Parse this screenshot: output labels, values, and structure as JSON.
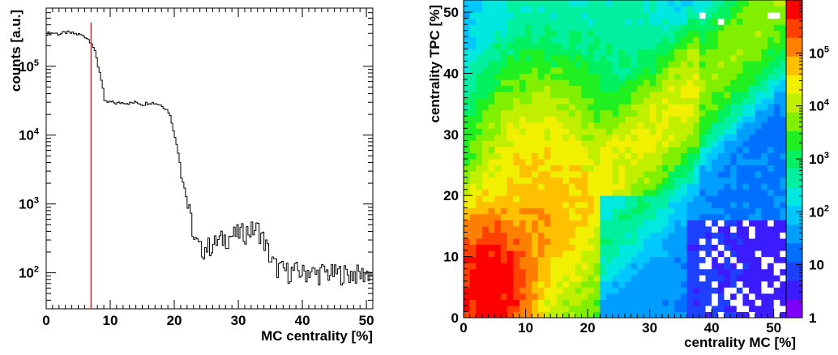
{
  "chart_data": [
    {
      "type": "line",
      "panel": "left",
      "xlabel": "MC centrality [%]",
      "ylabel": "counts [a.u.]",
      "xlim": [
        0,
        51
      ],
      "ylim": [
        30,
        700000
      ],
      "yscale": "log",
      "x_ticks": [
        0,
        10,
        20,
        30,
        40,
        50
      ],
      "y_ticks": [
        {
          "value": 100,
          "base": "10",
          "exp": "2"
        },
        {
          "value": 1000,
          "base": "10",
          "exp": "3"
        },
        {
          "value": 10000,
          "base": "10",
          "exp": "4"
        },
        {
          "value": 100000,
          "base": "10",
          "exp": "5"
        }
      ],
      "step_histogram": {
        "x": [
          0,
          1,
          2,
          3,
          4,
          5,
          6,
          7,
          8,
          9,
          10,
          11,
          12,
          13,
          14,
          15,
          16,
          17,
          18,
          19,
          20,
          21,
          22,
          23,
          24,
          25,
          26,
          27,
          28,
          29,
          30,
          31,
          32,
          33,
          34,
          35,
          36,
          37,
          38,
          39,
          40,
          41,
          42,
          43,
          44,
          45,
          46,
          47,
          48,
          49,
          50,
          51
        ],
        "y": [
          300000,
          305000,
          295000,
          310000,
          300000,
          290000,
          270000,
          220000,
          100000,
          30000,
          30000,
          29000,
          30000,
          29000,
          30000,
          28000,
          30000,
          29000,
          27000,
          22000,
          9000,
          2500,
          900,
          300,
          220,
          240,
          260,
          300,
          330,
          350,
          380,
          400,
          420,
          440,
          280,
          150,
          120,
          110,
          105,
          108,
          100,
          110,
          95,
          105,
          100,
          98,
          102,
          96,
          100,
          95,
          100,
          100
        ]
      },
      "vertical_line": {
        "x": 7,
        "color": "#e02020"
      }
    },
    {
      "type": "heatmap",
      "panel": "right",
      "xlabel": "centrality MC [%]",
      "ylabel": "centrality TPC [%]",
      "xlim": [
        0,
        52
      ],
      "ylim": [
        0,
        52
      ],
      "x_ticks": [
        0,
        10,
        20,
        30,
        40,
        50
      ],
      "y_ticks": [
        0,
        10,
        20,
        30,
        40,
        50
      ],
      "zscale": "log",
      "zlim": [
        1,
        1000000
      ],
      "z_ticks": [
        {
          "value": 1,
          "label": "1"
        },
        {
          "value": 10,
          "label": "10"
        },
        {
          "value": 100,
          "base": "10",
          "exp": "2"
        },
        {
          "value": 1000,
          "base": "10",
          "exp": "3"
        },
        {
          "value": 10000,
          "base": "10",
          "exp": "4"
        },
        {
          "value": 100000,
          "base": "10",
          "exp": "5"
        }
      ],
      "palette": [
        "#8000ff",
        "#3b1cff",
        "#1e40ff",
        "#0070ff",
        "#009fff",
        "#00c8ff",
        "#00e8e0",
        "#00f0a0",
        "#00f060",
        "#20f020",
        "#80f000",
        "#c0f000",
        "#f0f000",
        "#ffc000",
        "#ff8000",
        "#ff4000",
        "#ff0000"
      ]
    }
  ]
}
